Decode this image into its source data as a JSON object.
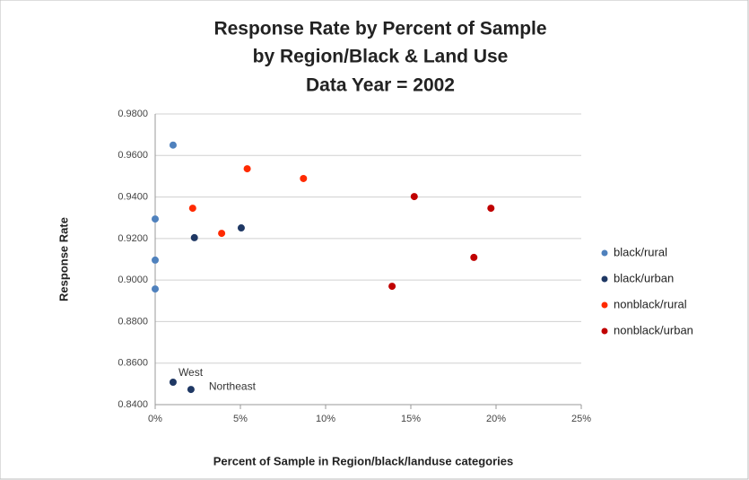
{
  "chart_data": {
    "type": "scatter",
    "title": [
      "Response Rate by Percent of Sample",
      "by Region/Black & Land Use",
      "Data Year = 2002"
    ],
    "x_label": "Percent of Sample in Region/black/landuse categories",
    "y_label": "Response Rate",
    "xlim": [
      0,
      25
    ],
    "xticks": [
      {
        "value": 0,
        "label": "0%"
      },
      {
        "value": 5,
        "label": "5%"
      },
      {
        "value": 10,
        "label": "10%"
      },
      {
        "value": 15,
        "label": "15%"
      },
      {
        "value": 20,
        "label": "20%"
      },
      {
        "value": 25,
        "label": "25%"
      }
    ],
    "ylim": [
      0.84,
      0.98
    ],
    "yticks": [
      {
        "value": 0.84,
        "label": "0.8400"
      },
      {
        "value": 0.86,
        "label": "0.8600"
      },
      {
        "value": 0.88,
        "label": "0.8800"
      },
      {
        "value": 0.9,
        "label": "0.9000"
      },
      {
        "value": 0.92,
        "label": "0.9200"
      },
      {
        "value": 0.94,
        "label": "0.9400"
      },
      {
        "value": 0.96,
        "label": "0.9600"
      },
      {
        "value": 0.98,
        "label": "0.9800"
      }
    ],
    "grid": true,
    "legend": "right",
    "series": [
      {
        "name": "black/rural",
        "color": "#4f81bd",
        "x": [
          1.05,
          0,
          0,
          0
        ],
        "values": [
          0.965,
          0.9294,
          0.9096,
          0.8957
        ]
      },
      {
        "name": "black/urban",
        "color": "#1f3864",
        "x": [
          2.3,
          5.05,
          1.05,
          2.1
        ],
        "values": [
          0.9204,
          0.9251,
          0.8508,
          0.8473
        ]
      },
      {
        "name": "nonblack/rural",
        "color": "#ff2a00",
        "x": [
          2.2,
          3.9,
          5.4,
          8.7
        ],
        "values": [
          0.9346,
          0.9225,
          0.9536,
          0.9489
        ]
      },
      {
        "name": "nonblack/urban",
        "color": "#c00000",
        "x": [
          15.2,
          19.7,
          18.7,
          13.9
        ],
        "values": [
          0.9402,
          0.9346,
          0.9109,
          0.897
        ]
      }
    ],
    "annotations": [
      {
        "text": "West",
        "series": 1,
        "point": 2
      },
      {
        "text": "Northeast",
        "series": 1,
        "point": 3
      }
    ]
  }
}
